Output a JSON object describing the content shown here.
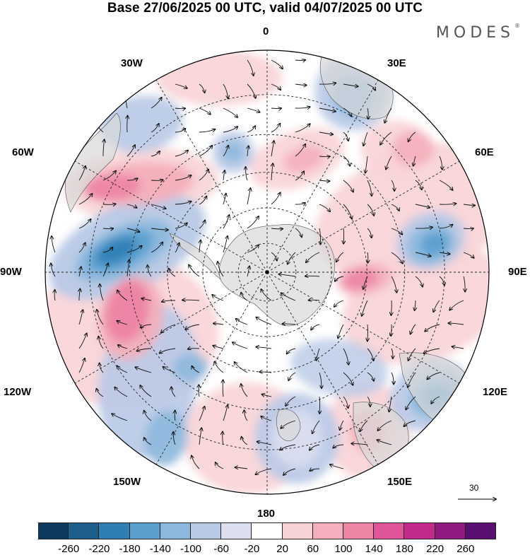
{
  "title": "Base 27/06/2025 00 UTC, valid 04/07/2025 00 UTC",
  "brand": {
    "text": "MODES",
    "mark": "®"
  },
  "lon_labels": {
    "top": "0",
    "bottom": "180",
    "left": "90W",
    "right": "90E",
    "upper_left_a": "30W",
    "upper_left_b": "60W",
    "upper_right_a": "30E",
    "upper_right_b": "60E",
    "lower_left_a": "120W",
    "lower_left_b": "150W",
    "lower_right_a": "120E",
    "lower_right_b": "150E"
  },
  "vector_reference": {
    "label": "30"
  },
  "colorbar": {
    "colors": [
      "#0d3a5c",
      "#1d5f8a",
      "#2f7fb5",
      "#5b9fcf",
      "#8cb8dd",
      "#b8c9e6",
      "#dcdff0",
      "#ffffff",
      "#f8d3d6",
      "#f3afbb",
      "#ec84a4",
      "#e0559a",
      "#c22a8b",
      "#8f1a80",
      "#5a0e72"
    ],
    "labels": [
      "-260",
      "-220",
      "-180",
      "-140",
      "-100",
      "-60",
      "-20",
      "20",
      "60",
      "100",
      "140",
      "180",
      "220",
      "260"
    ]
  },
  "features": {
    "blue": "#2f7fb5",
    "pink": "#e0559a",
    "land": "#d8d8d8"
  }
}
